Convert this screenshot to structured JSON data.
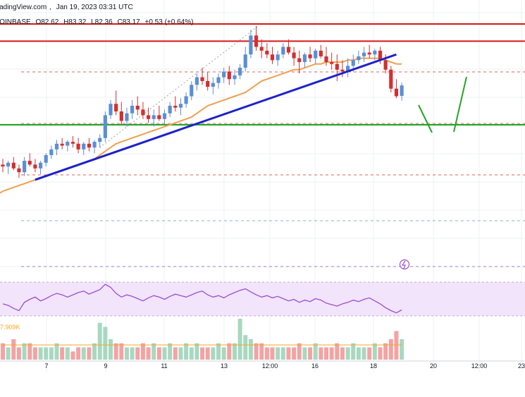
{
  "header": {
    "source": "TradingView.com",
    "date": "Jan 19, 2023 03:31 UTC",
    "symbol": "COINBASE",
    "o": "O82.62",
    "h": "H83.32",
    "l": "L82.36",
    "c": "C83.17",
    "chg": "+0.53 (+0.64%)"
  },
  "volume_label": "7.909K",
  "colors": {
    "bull": "#5b8fd4",
    "bear": "#d32f2f",
    "trendline": "#1e22c8",
    "ma": "#f0a050",
    "support": "#1a9f1a",
    "resistance": "#d41919",
    "projection": "#27a327",
    "rsi_bg": "#f1e4fb",
    "rsi_line": "#9b4fd1"
  },
  "chart_data": {
    "type": "candlestick",
    "x_ticks": [
      "7",
      "9",
      "11",
      "13",
      "12:00",
      "16",
      "18",
      "20",
      "12:00",
      "23"
    ],
    "ylim": [
      73,
      87
    ],
    "candles": [
      [
        79.0,
        79.3,
        78.6,
        78.9
      ],
      [
        78.9,
        79.2,
        78.5,
        79.1
      ],
      [
        79.1,
        79.4,
        78.7,
        78.8
      ],
      [
        78.8,
        79.0,
        78.3,
        78.6
      ],
      [
        78.6,
        79.4,
        78.4,
        79.2
      ],
      [
        79.2,
        79.6,
        78.9,
        79.0
      ],
      [
        79.0,
        79.3,
        78.6,
        78.8
      ],
      [
        78.8,
        79.2,
        78.5,
        79.1
      ],
      [
        79.1,
        79.6,
        78.9,
        79.5
      ],
      [
        79.5,
        80.0,
        79.3,
        79.8
      ],
      [
        79.8,
        80.3,
        79.5,
        80.1
      ],
      [
        80.1,
        80.4,
        79.8,
        80.0
      ],
      [
        80.0,
        80.3,
        79.7,
        80.2
      ],
      [
        80.2,
        80.5,
        79.9,
        80.1
      ],
      [
        80.1,
        80.4,
        79.6,
        79.8
      ],
      [
        79.8,
        80.2,
        79.5,
        80.1
      ],
      [
        80.1,
        80.4,
        79.7,
        79.9
      ],
      [
        79.9,
        80.3,
        79.6,
        80.2
      ],
      [
        80.2,
        80.6,
        79.9,
        80.4
      ],
      [
        80.4,
        81.8,
        80.2,
        81.6
      ],
      [
        81.6,
        82.4,
        81.4,
        82.2
      ],
      [
        82.2,
        82.9,
        81.6,
        81.8
      ],
      [
        81.8,
        82.3,
        81.1,
        81.3
      ],
      [
        81.3,
        82.0,
        81.0,
        81.7
      ],
      [
        81.7,
        82.4,
        81.4,
        82.1
      ],
      [
        82.1,
        82.6,
        81.6,
        81.9
      ],
      [
        81.9,
        82.3,
        81.4,
        81.6
      ],
      [
        81.6,
        82.0,
        81.2,
        81.4
      ],
      [
        81.4,
        81.9,
        81.0,
        81.6
      ],
      [
        81.6,
        82.1,
        81.3,
        81.4
      ],
      [
        81.4,
        81.9,
        81.1,
        81.7
      ],
      [
        81.7,
        82.3,
        81.5,
        82.1
      ],
      [
        82.1,
        82.6,
        81.8,
        82.0
      ],
      [
        82.0,
        82.5,
        81.6,
        82.2
      ],
      [
        82.2,
        82.8,
        82.0,
        82.6
      ],
      [
        82.6,
        83.4,
        82.4,
        83.2
      ],
      [
        83.2,
        83.8,
        82.9,
        83.6
      ],
      [
        83.6,
        84.1,
        83.2,
        83.4
      ],
      [
        83.4,
        83.9,
        82.9,
        83.1
      ],
      [
        83.1,
        83.6,
        82.7,
        83.3
      ],
      [
        83.3,
        83.8,
        83.0,
        83.6
      ],
      [
        83.6,
        84.1,
        83.3,
        83.9
      ],
      [
        83.9,
        84.2,
        83.2,
        83.5
      ],
      [
        83.5,
        84.0,
        83.2,
        83.7
      ],
      [
        83.7,
        84.3,
        83.5,
        84.1
      ],
      [
        84.1,
        85.2,
        83.9,
        84.8
      ],
      [
        84.8,
        86.1,
        84.6,
        85.8
      ],
      [
        85.8,
        86.3,
        85.0,
        85.2
      ],
      [
        85.2,
        85.6,
        84.6,
        85.0
      ],
      [
        85.0,
        85.4,
        84.6,
        84.8
      ],
      [
        84.8,
        85.2,
        84.3,
        84.5
      ],
      [
        84.5,
        85.0,
        84.2,
        84.8
      ],
      [
        84.8,
        85.4,
        84.6,
        85.2
      ],
      [
        85.2,
        85.6,
        84.8,
        84.9
      ],
      [
        84.9,
        85.2,
        84.2,
        84.6
      ],
      [
        84.6,
        85.0,
        83.8,
        84.4
      ],
      [
        84.4,
        84.9,
        84.1,
        84.8
      ],
      [
        84.8,
        85.2,
        84.4,
        84.6
      ],
      [
        84.6,
        85.1,
        84.3,
        85.0
      ],
      [
        85.0,
        85.3,
        84.6,
        84.7
      ],
      [
        84.7,
        85.2,
        84.2,
        84.4
      ],
      [
        84.4,
        84.9,
        84.0,
        84.3
      ],
      [
        84.3,
        84.8,
        83.4,
        84.0
      ],
      [
        84.0,
        84.5,
        83.6,
        83.9
      ],
      [
        83.9,
        84.6,
        83.6,
        84.2
      ],
      [
        84.2,
        84.8,
        83.9,
        84.5
      ],
      [
        84.5,
        85.0,
        84.3,
        84.7
      ],
      [
        84.7,
        85.2,
        84.4,
        84.9
      ],
      [
        84.9,
        85.3,
        84.6,
        84.8
      ],
      [
        84.8,
        85.1,
        84.5,
        85.0
      ],
      [
        85.0,
        85.2,
        84.3,
        84.5
      ],
      [
        84.5,
        84.8,
        83.8,
        84.0
      ],
      [
        84.0,
        84.2,
        82.8,
        83.0
      ],
      [
        83.0,
        83.5,
        82.5,
        82.6
      ],
      [
        82.62,
        83.32,
        82.36,
        83.17
      ]
    ],
    "trendline": {
      "from": [
        6,
        78.2
      ],
      "to": [
        73,
        84.8
      ]
    },
    "ma": [
      77.6,
      77.7,
      77.8,
      77.9,
      78.0,
      78.1,
      78.2,
      78.3,
      78.4,
      78.5,
      78.6,
      78.7,
      78.8,
      78.9,
      79.0,
      79.1,
      79.2,
      79.3,
      79.5,
      79.7,
      79.9,
      80.1,
      80.2,
      80.3,
      80.4,
      80.5,
      80.6,
      80.7,
      80.8,
      80.9,
      81.0,
      81.1,
      81.2,
      81.3,
      81.4,
      81.5,
      81.7,
      81.9,
      82.1,
      82.2,
      82.3,
      82.4,
      82.5,
      82.6,
      82.7,
      82.8,
      83.0,
      83.2,
      83.4,
      83.5,
      83.6,
      83.7,
      83.8,
      83.9,
      84.0,
      84.0,
      84.1,
      84.2,
      84.3,
      84.3,
      84.4,
      84.4,
      84.4,
      84.4,
      84.5,
      84.5,
      84.6,
      84.6,
      84.6,
      84.6,
      84.6,
      84.5,
      84.4,
      84.3,
      84.3
    ],
    "resistance": 85.5,
    "support": 81.1,
    "rsi": [
      46,
      44,
      40,
      37,
      48,
      52,
      55,
      50,
      53,
      57,
      60,
      58,
      55,
      58,
      61,
      63,
      59,
      62,
      65,
      72,
      68,
      60,
      55,
      58,
      56,
      53,
      50,
      54,
      57,
      55,
      52,
      56,
      59,
      57,
      55,
      58,
      61,
      63,
      58,
      55,
      57,
      54,
      58,
      61,
      64,
      66,
      62,
      58,
      55,
      57,
      54,
      56,
      53,
      50,
      52,
      48,
      51,
      49,
      53,
      51,
      47,
      45,
      43,
      46,
      48,
      51,
      49,
      52,
      54,
      50,
      46,
      41,
      37,
      34,
      38
    ],
    "volume": [
      4,
      3,
      5,
      3,
      4,
      4,
      3,
      3,
      3,
      3,
      4,
      3,
      3,
      2,
      3,
      3,
      3,
      4,
      9,
      8,
      5,
      4,
      4,
      3,
      3,
      3,
      4,
      3,
      4,
      3,
      3,
      4,
      3,
      3,
      4,
      3,
      4,
      3,
      3,
      3,
      4,
      3,
      4,
      4,
      10,
      6,
      5,
      4,
      4,
      3,
      3,
      3,
      3,
      3,
      3,
      4,
      3,
      3,
      4,
      3,
      3,
      3,
      4,
      3,
      3,
      4,
      3,
      3,
      3,
      4,
      3,
      4,
      5,
      7,
      5
    ]
  }
}
